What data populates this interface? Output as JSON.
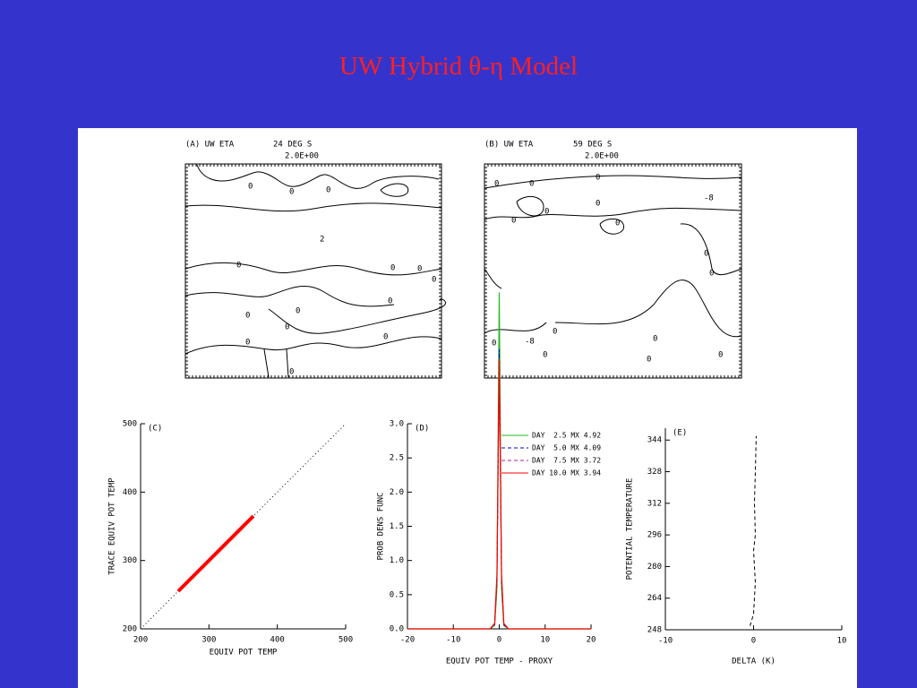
{
  "title": "UW Hybrid θ-η Model",
  "panels": [
    {
      "label": "(A) UW ETA",
      "latitude": "24 DEG S",
      "contour_interval": "2.0E+00",
      "contour_labels": [
        "0",
        "0",
        "0",
        "0",
        "2",
        "0",
        "0",
        "0",
        "0",
        "0",
        "0",
        "0",
        "0",
        "0",
        "0"
      ]
    },
    {
      "label": "(B) UW ETA",
      "latitude": "59 DEG S",
      "contour_interval": "2.0E+00",
      "contour_labels": [
        "0",
        "0",
        "0",
        "-8",
        "0",
        "0",
        "0",
        "0",
        "0",
        "0",
        "0",
        "0",
        "-8",
        "0",
        "0",
        "0",
        "0"
      ]
    }
  ],
  "chart_data": [
    {
      "type": "line",
      "panel_label": "(C)",
      "x_label": "EQUIV POT TEMP",
      "y_label": "TRACE EQUIV POT TEMP",
      "xlim": [
        200,
        500
      ],
      "ylim": [
        200,
        500
      ],
      "xticks": [
        200,
        300,
        400,
        500
      ],
      "yticks": [
        200,
        300,
        400,
        500
      ],
      "series": [
        {
          "color": "#000000",
          "line_style": "dotted",
          "x": [
            200,
            500
          ],
          "values": [
            200,
            500
          ]
        },
        {
          "color": "#ff0000",
          "line_style": "thick",
          "x": [
            255,
            365
          ],
          "values": [
            255,
            365
          ]
        }
      ]
    },
    {
      "type": "line",
      "panel_label": "(D)",
      "x_label": "EQUIV POT TEMP - PROXY",
      "y_label": "PROB DENS FUNC",
      "xlim": [
        -20,
        20
      ],
      "ylim": [
        0,
        3
      ],
      "xticks": [
        -20,
        -10,
        0,
        10,
        20
      ],
      "yticks": [
        {
          "value": 0,
          "label": "0.0"
        },
        0.5,
        {
          "value": 1,
          "label": "1.0"
        },
        1.5,
        {
          "value": 2,
          "label": "2.0"
        },
        2.5,
        {
          "value": 3,
          "label": "3.0"
        }
      ],
      "legend": "upper right",
      "x": [
        -20,
        -2,
        -1,
        -0.5,
        0,
        0.5,
        1,
        2,
        20
      ],
      "series": [
        {
          "name": "DAY  2.5 MX 4.92",
          "color": "#22bb22",
          "line_style": "solid",
          "values": [
            0,
            0,
            0.05,
            0.6,
            4.92,
            0.6,
            0.05,
            0,
            0
          ]
        },
        {
          "name": "DAY  5.0 MX 4.09",
          "color": "#0000cc",
          "line_style": "dashed",
          "values": [
            0,
            0,
            0.06,
            0.7,
            4.09,
            0.7,
            0.06,
            0,
            0
          ]
        },
        {
          "name": "DAY  7.5 MX 3.72",
          "color": "#aa22aa",
          "line_style": "dashed",
          "values": [
            0,
            0,
            0.07,
            0.75,
            3.72,
            0.75,
            0.07,
            0,
            0
          ]
        },
        {
          "name": "DAY 10.0 MX 3.94",
          "color": "#ff0000",
          "line_style": "solid",
          "values": [
            0,
            0,
            0.08,
            0.8,
            3.94,
            0.8,
            0.08,
            0,
            0
          ]
        }
      ]
    },
    {
      "type": "line",
      "panel_label": "(E)",
      "x_label": "DELTA (K)",
      "y_label": "POTENTIAL TEMPERATURE",
      "xlim": [
        -10,
        10
      ],
      "ylim": [
        248,
        350
      ],
      "xticks": [
        -10,
        0,
        10
      ],
      "yticks": [
        248,
        264,
        280,
        296,
        312,
        328,
        344
      ],
      "series": [
        {
          "color": "#000000",
          "line_style": "dashed",
          "x": [
            -0.4,
            0,
            0.1,
            0.2,
            0.1,
            0,
            0.2,
            0.1,
            0.2,
            0.3
          ],
          "values": [
            250,
            256,
            264,
            272,
            280,
            288,
            296,
            312,
            328,
            346
          ]
        }
      ]
    }
  ]
}
